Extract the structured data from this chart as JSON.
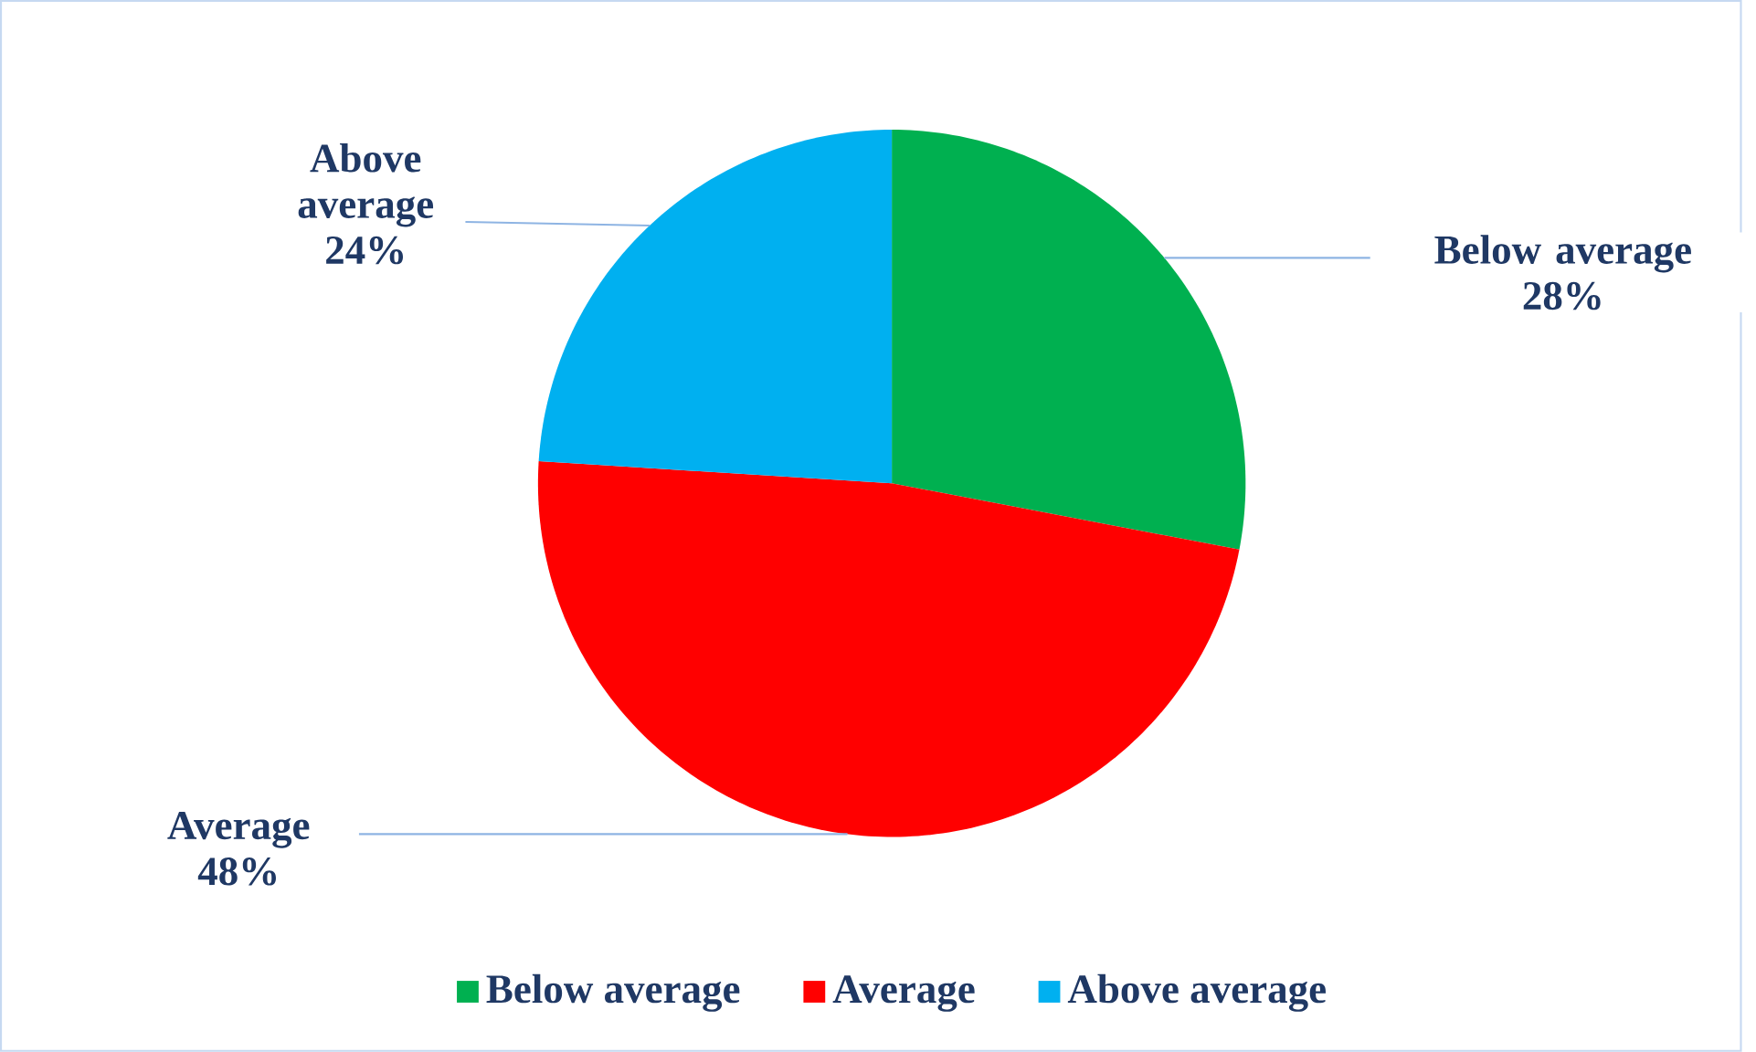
{
  "chart_data": {
    "type": "pie",
    "categories": [
      "Below average",
      "Average",
      "Above average"
    ],
    "values": [
      28,
      48,
      24
    ],
    "value_labels": [
      "28%",
      "48%",
      "24%"
    ],
    "colors": [
      "#00b050",
      "#ff0000",
      "#00b0f0"
    ],
    "legend": "bottom"
  }
}
